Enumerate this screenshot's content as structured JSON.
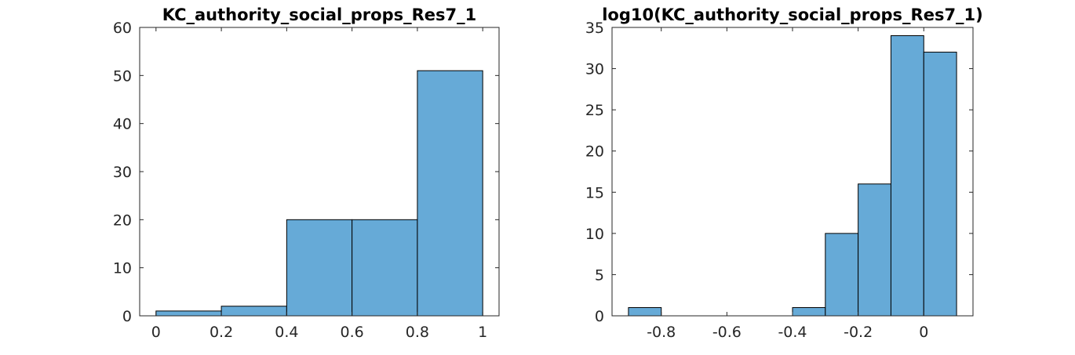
{
  "chart_data": [
    {
      "type": "bar",
      "title": "KC_authority_social_props_Res7_1",
      "bin_edges": [
        0,
        0.2,
        0.4,
        0.6,
        0.8,
        1.0
      ],
      "values": [
        1,
        2,
        20,
        20,
        51
      ],
      "xlim": [
        -0.05,
        1.05
      ],
      "ylim": [
        0,
        60
      ],
      "xticks": [
        0,
        0.2,
        0.4,
        0.6,
        0.8,
        1
      ],
      "xtick_labels": [
        "0",
        "0.2",
        "0.4",
        "0.6",
        "0.8",
        "1"
      ],
      "yticks": [
        0,
        10,
        20,
        30,
        40,
        50,
        60
      ],
      "ytick_labels": [
        "0",
        "10",
        "20",
        "30",
        "40",
        "50",
        "60"
      ],
      "bar_color": "#66aad7",
      "edge_color": "#000000"
    },
    {
      "type": "bar",
      "title": "log10(KC_authority_social_props_Res7_1)",
      "bin_edges": [
        -0.9,
        -0.8,
        -0.7,
        -0.6,
        -0.5,
        -0.4,
        -0.3,
        -0.2,
        -0.1,
        0.0,
        0.1
      ],
      "values": [
        1,
        0,
        0,
        0,
        0,
        1,
        10,
        16,
        34,
        32
      ],
      "xlim": [
        -0.95,
        0.15
      ],
      "ylim": [
        0,
        35
      ],
      "xticks": [
        -0.8,
        -0.6,
        -0.4,
        -0.2,
        0
      ],
      "xtick_labels": [
        "-0.8",
        "-0.6",
        "-0.4",
        "-0.2",
        "0"
      ],
      "yticks": [
        0,
        5,
        10,
        15,
        20,
        25,
        30,
        35
      ],
      "ytick_labels": [
        "0",
        "5",
        "10",
        "15",
        "20",
        "25",
        "30",
        "35"
      ],
      "bar_color": "#66aad7",
      "edge_color": "#000000"
    }
  ]
}
